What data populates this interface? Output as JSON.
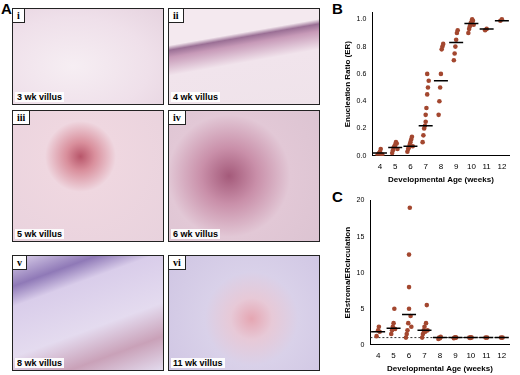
{
  "panel_a": {
    "label": "A",
    "images": [
      {
        "numeral": "i",
        "caption": "3 wk villus"
      },
      {
        "numeral": "ii",
        "caption": "4 wk villus"
      },
      {
        "numeral": "iii",
        "caption": "5 wk villus"
      },
      {
        "numeral": "iv",
        "caption": "6 wk villus"
      },
      {
        "numeral": "v",
        "caption": "8 wk villus"
      },
      {
        "numeral": "vi",
        "caption": "11 wk villus"
      }
    ]
  },
  "chart_data": [
    {
      "type": "scatter",
      "title": "B",
      "x_label": "Developmental Age (weeks)",
      "y_label": "Enucleation Ratio (ER)",
      "color": "#a3472f",
      "grid": false,
      "x": [
        3.85,
        3.95,
        4.0,
        4.05,
        4.1,
        4.15,
        4.8,
        4.85,
        4.9,
        4.95,
        5.0,
        5.05,
        5.1,
        5.15,
        5.8,
        5.85,
        5.9,
        5.95,
        6.0,
        6.05,
        6.1,
        6.15,
        6.8,
        6.85,
        6.9,
        6.95,
        7.0,
        7.0,
        7.05,
        7.1,
        7.15,
        7.2,
        7.1,
        7.85,
        7.9,
        7.95,
        8.0,
        8.05,
        8.1,
        8.15,
        8.85,
        8.9,
        8.95,
        9.0,
        9.05,
        9.1,
        9.8,
        9.85,
        9.9,
        9.95,
        10.0,
        10.05,
        10.1,
        10.15,
        10.9,
        11.0,
        11.9,
        12.0
      ],
      "values": [
        0.01,
        0.02,
        0.03,
        0.05,
        0.0,
        0.01,
        0.02,
        0.04,
        0.06,
        0.07,
        0.08,
        0.1,
        0.09,
        0.05,
        0.03,
        0.05,
        0.06,
        0.08,
        0.1,
        0.12,
        0.14,
        0.07,
        0.1,
        0.15,
        0.2,
        0.22,
        0.25,
        0.3,
        0.35,
        0.45,
        0.5,
        0.55,
        0.6,
        0.3,
        0.4,
        0.5,
        0.6,
        0.78,
        0.8,
        0.82,
        0.7,
        0.75,
        0.8,
        0.85,
        0.9,
        0.92,
        0.9,
        0.93,
        0.95,
        0.97,
        0.98,
        1.0,
        0.99,
        0.96,
        0.92,
        0.93,
        0.99,
        1.0
      ],
      "medians": {
        "x": [
          4,
          5,
          6,
          7,
          8,
          9,
          10,
          11,
          12
        ],
        "values": [
          0.02,
          0.06,
          0.07,
          0.22,
          0.55,
          0.83,
          0.97,
          0.93,
          0.99
        ]
      },
      "xlim": [
        3.5,
        12.5
      ],
      "xticks": [
        4,
        5,
        6,
        7,
        8,
        9,
        10,
        11,
        12
      ],
      "ylim": [
        0,
        1.05
      ],
      "yticks": [
        {
          "value": 0,
          "label": "0.0"
        },
        0.2,
        0.4,
        0.6,
        0.8,
        {
          "value": 1,
          "label": "1.0"
        }
      ]
    },
    {
      "type": "scatter",
      "title": "C",
      "x_label": "Developmental Age (weeks)",
      "y_label": "ERstroma/ERcirculation",
      "color": "#a3472f",
      "grid": false,
      "x": [
        3.9,
        4.0,
        4.05,
        4.1,
        4.85,
        4.9,
        4.95,
        5.0,
        5.05,
        5.1,
        5.8,
        5.85,
        5.9,
        5.95,
        6.0,
        6.0,
        6.0,
        6.05,
        6.1,
        6.15,
        6.85,
        6.9,
        6.95,
        7.0,
        7.05,
        7.1,
        7.15,
        7.2,
        7.9,
        7.95,
        8.0,
        8.05,
        8.9,
        8.95,
        9.0,
        9.05,
        9.9,
        9.95,
        10.0,
        10.05,
        10.95,
        11.05,
        11.95,
        12.05
      ],
      "values": [
        1.2,
        2.0,
        2.5,
        1.8,
        1.5,
        2.0,
        2.5,
        3.0,
        5.0,
        2.2,
        1.0,
        1.5,
        2.0,
        3.0,
        5.0,
        8.0,
        12.5,
        19.0,
        4.0,
        2.5,
        1.0,
        1.5,
        2.0,
        2.5,
        1.8,
        3.0,
        5.5,
        2.0,
        0.8,
        1.0,
        0.9,
        1.1,
        0.9,
        1.0,
        1.05,
        1.0,
        1.0,
        0.95,
        1.05,
        1.0,
        1.0,
        1.0,
        1.0,
        1.0
      ],
      "medians": {
        "x": [
          4,
          5,
          6,
          7,
          8,
          9,
          10,
          11,
          12
        ],
        "values": [
          1.8,
          2.3,
          4.2,
          2.0,
          1.0,
          1.0,
          1.0,
          1.0,
          1.0
        ]
      },
      "hline": 1,
      "xlim": [
        3.5,
        12.5
      ],
      "xticks": [
        4,
        5,
        6,
        7,
        8,
        9,
        10,
        11,
        12
      ],
      "ylim": [
        0,
        20
      ],
      "yticks": [
        0,
        5,
        10,
        15,
        20
      ]
    }
  ]
}
